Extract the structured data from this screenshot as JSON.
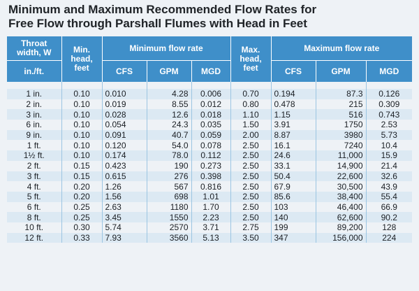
{
  "title": {
    "line1": "Minimum and Maximum Recommended Flow Rates for",
    "line2": "Free Flow through Parshall Flumes with Head in Feet"
  },
  "headers": {
    "throat_width": "Throat width, W",
    "throat_units": "in./ft.",
    "min_head": "Min. head, feet",
    "min_flow": "Minimum flow rate",
    "max_head": "Max. head, feet",
    "max_flow": "Maximum flow rate",
    "cfs": "CFS",
    "gpm": "GPM",
    "mgd": "MGD"
  },
  "rows": [
    {
      "w": "1 in.",
      "minh": "0.10",
      "mincfs": "0.010",
      "mingpm": "4.28",
      "minmgd": "0.006",
      "maxh": "0.70",
      "maxcfs": "0.194",
      "maxgpm": "87.3",
      "maxmgd": "0.126"
    },
    {
      "w": "2 in.",
      "minh": "0.10",
      "mincfs": "0.019",
      "mingpm": "8.55",
      "minmgd": "0.012",
      "maxh": "0.80",
      "maxcfs": "0.478",
      "maxgpm": "215",
      "maxmgd": "0.309"
    },
    {
      "w": "3 in.",
      "minh": "0.10",
      "mincfs": "0.028",
      "mingpm": "12.6",
      "minmgd": "0.018",
      "maxh": "1.10",
      "maxcfs": "1.15",
      "maxgpm": "516",
      "maxmgd": "0.743"
    },
    {
      "w": "6 in.",
      "minh": "0.10",
      "mincfs": "0.054",
      "mingpm": "24.3",
      "minmgd": "0.035",
      "maxh": "1.50",
      "maxcfs": "3.91",
      "maxgpm": "1750",
      "maxmgd": "2.53"
    },
    {
      "w": "9 in.",
      "minh": "0.10",
      "mincfs": "0.091",
      "mingpm": "40.7",
      "minmgd": "0.059",
      "maxh": "2.00",
      "maxcfs": "8.87",
      "maxgpm": "3980",
      "maxmgd": "5.73"
    },
    {
      "w": "1 ft.",
      "minh": "0.10",
      "mincfs": "0.120",
      "mingpm": "54.0",
      "minmgd": "0.078",
      "maxh": "2.50",
      "maxcfs": "16.1",
      "maxgpm": "7240",
      "maxmgd": "10.4"
    },
    {
      "w": "1½ ft.",
      "minh": "0.10",
      "mincfs": "0.174",
      "mingpm": "78.0",
      "minmgd": "0.112",
      "maxh": "2.50",
      "maxcfs": "24.6",
      "maxgpm": "11,000",
      "maxmgd": "15.9"
    },
    {
      "w": "2 ft.",
      "minh": "0.15",
      "mincfs": "0.423",
      "mingpm": "190",
      "minmgd": "0.273",
      "maxh": "2.50",
      "maxcfs": "33.1",
      "maxgpm": "14,900",
      "maxmgd": "21.4"
    },
    {
      "w": "3 ft.",
      "minh": "0.15",
      "mincfs": "0.615",
      "mingpm": "276",
      "minmgd": "0.398",
      "maxh": "2.50",
      "maxcfs": "50.4",
      "maxgpm": "22,600",
      "maxmgd": "32.6"
    },
    {
      "w": "4 ft.",
      "minh": "0.20",
      "mincfs": "1.26",
      "mingpm": "567",
      "minmgd": "0.816",
      "maxh": "2.50",
      "maxcfs": "67.9",
      "maxgpm": "30,500",
      "maxmgd": "43.9"
    },
    {
      "w": "5 ft.",
      "minh": "0.20",
      "mincfs": "1.56",
      "mingpm": "698",
      "minmgd": "1.01",
      "maxh": "2.50",
      "maxcfs": "85.6",
      "maxgpm": "38,400",
      "maxmgd": "55.4"
    },
    {
      "w": "6 ft.",
      "minh": "0.25",
      "mincfs": "2.63",
      "mingpm": "1180",
      "minmgd": "1.70",
      "maxh": "2.50",
      "maxcfs": "103",
      "maxgpm": "46,400",
      "maxmgd": "66.9"
    },
    {
      "w": "8 ft.",
      "minh": "0.25",
      "mincfs": "3.45",
      "mingpm": "1550",
      "minmgd": "2.23",
      "maxh": "2.50",
      "maxcfs": "140",
      "maxgpm": "62,600",
      "maxmgd": "90.2"
    },
    {
      "w": "10 ft.",
      "minh": "0.30",
      "mincfs": "5.74",
      "mingpm": "2570",
      "minmgd": "3.71",
      "maxh": "2.75",
      "maxcfs": "199",
      "maxgpm": "89,200",
      "maxmgd": "128"
    },
    {
      "w": "12 ft.",
      "minh": "0.33",
      "mincfs": "7.93",
      "mingpm": "3560",
      "minmgd": "5.13",
      "maxh": "3.50",
      "maxcfs": "347",
      "maxgpm": "156,000",
      "maxmgd": "224"
    }
  ]
}
